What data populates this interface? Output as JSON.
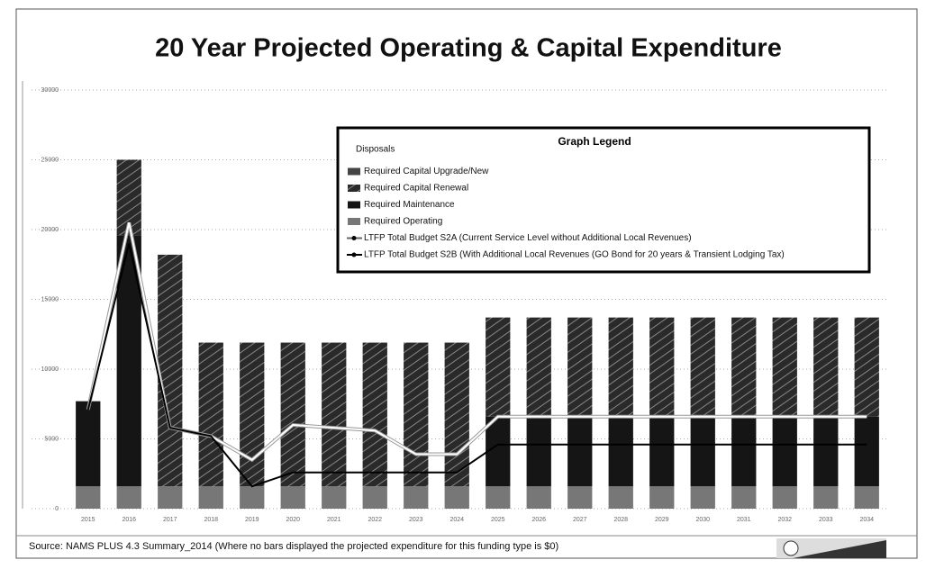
{
  "chart_data": {
    "type": "bar",
    "stacked": true,
    "title": "20 Year Projected Operating & Capital Expenditure",
    "legend_title": "Graph Legend",
    "source": "Source: NAMS PLUS 4.3 Summary_2014 (Where no bars displayed the projected expenditure for this funding type is $0)",
    "categories": [
      "2015",
      "2016",
      "2017",
      "2018",
      "2019",
      "2020",
      "2021",
      "2022",
      "2023",
      "2024",
      "2025",
      "2026",
      "2027",
      "2028",
      "2029",
      "2030",
      "2031",
      "2032",
      "2033",
      "2034"
    ],
    "ylim": [
      0,
      30000
    ],
    "yticks": [
      0,
      5000,
      10000,
      15000,
      20000,
      25000,
      30000
    ],
    "grid": true,
    "series": [
      {
        "name": "Disposals",
        "type": "bar",
        "color": "#bbbbbb",
        "values": [
          0,
          0,
          0,
          0,
          0,
          0,
          0,
          0,
          0,
          0,
          0,
          0,
          0,
          0,
          0,
          0,
          0,
          0,
          0,
          0
        ]
      },
      {
        "name": "Required Operating",
        "type": "bar",
        "color": "#777777",
        "values": [
          1600,
          1600,
          1600,
          1600,
          1600,
          1600,
          1600,
          1600,
          1600,
          1600,
          1600,
          1600,
          1600,
          1600,
          1600,
          1600,
          1600,
          1600,
          1600,
          1600
        ]
      },
      {
        "name": "Required Maintenance",
        "type": "bar",
        "color": "#151515",
        "values": [
          6100,
          18000,
          0,
          0,
          0,
          0,
          0,
          0,
          0,
          0,
          5000,
          5000,
          5000,
          5000,
          5000,
          5000,
          5000,
          5000,
          5000,
          5000
        ]
      },
      {
        "name": "Required Capital Renewal",
        "type": "bar",
        "color": "#2a2a2a",
        "hatch": true,
        "values": [
          0,
          5400,
          16600,
          10300,
          10300,
          10300,
          10300,
          10300,
          10300,
          10300,
          7100,
          7100,
          7100,
          7100,
          7100,
          7100,
          7100,
          7100,
          7100,
          7100
        ]
      },
      {
        "name": "Required Capital Upgrade/New",
        "type": "bar",
        "color": "#444444",
        "values": [
          0,
          0,
          0,
          0,
          0,
          0,
          0,
          0,
          0,
          0,
          0,
          0,
          0,
          0,
          0,
          0,
          0,
          0,
          0,
          0
        ]
      },
      {
        "name": "LTFP Total Budget S2A (Current Service Level without Additional Local Revenues)",
        "type": "line",
        "color": "#ffffff",
        "values": [
          7100,
          20500,
          5800,
          5200,
          3500,
          6000,
          5800,
          5600,
          3900,
          3900,
          6600,
          6600,
          6600,
          6600,
          6600,
          6600,
          6600,
          6600,
          6600,
          6600
        ]
      },
      {
        "name": "LTFP Total Budget S2B (With Additional Local Revenues (GO Bond for 20 years & Transient Lodging Tax)",
        "type": "line",
        "color": "#000000",
        "values": [
          7100,
          19000,
          5800,
          5200,
          1600,
          2600,
          2600,
          2600,
          2600,
          2600,
          4600,
          4600,
          4600,
          4600,
          4600,
          4600,
          4600,
          4600,
          4600,
          4600
        ]
      }
    ]
  }
}
